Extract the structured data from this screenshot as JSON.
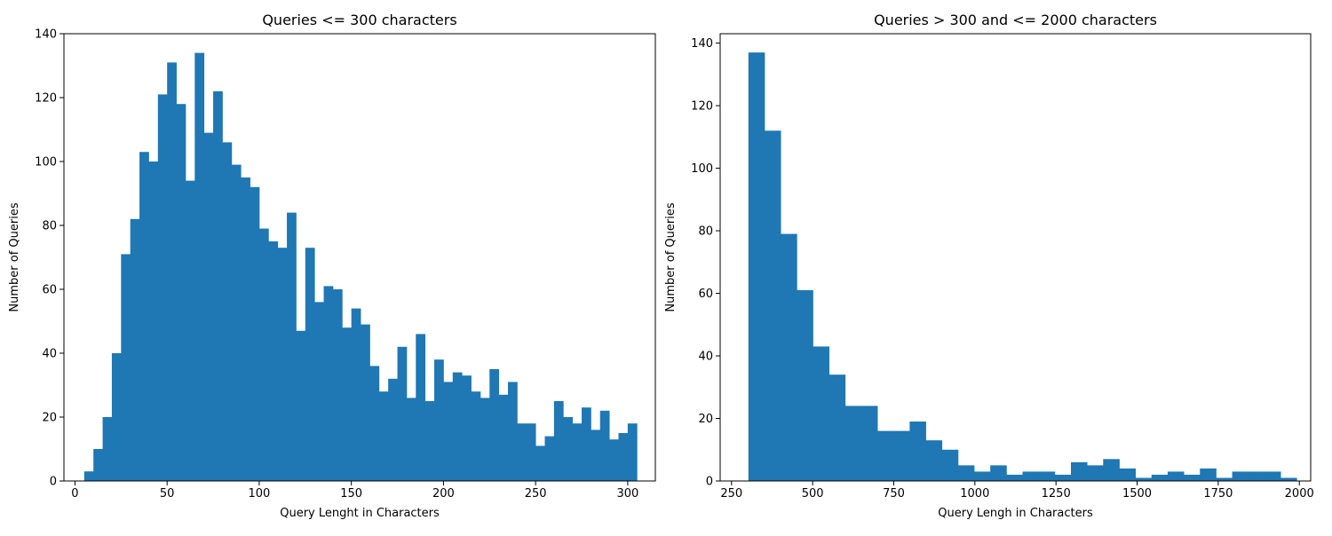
{
  "colors": {
    "bar": "#1f77b4",
    "axis": "#000000",
    "background": "#ffffff"
  },
  "chart_data": [
    {
      "type": "bar",
      "title": "Queries <= 300 characters",
      "xlabel": "Query Lenght in Characters",
      "ylabel": "Number of Queries",
      "xlim": [
        -6,
        315
      ],
      "ylim": [
        0,
        140
      ],
      "xticks": [
        0,
        50,
        100,
        150,
        200,
        250,
        300
      ],
      "yticks": [
        0,
        20,
        40,
        60,
        80,
        100,
        120,
        140
      ],
      "grid": false,
      "bin_start": 5,
      "bin_width": 5,
      "values": [
        3,
        10,
        20,
        40,
        71,
        82,
        103,
        100,
        121,
        131,
        118,
        94,
        134,
        109,
        122,
        106,
        99,
        95,
        92,
        79,
        75,
        73,
        84,
        47,
        73,
        56,
        61,
        60,
        48,
        54,
        49,
        36,
        28,
        32,
        42,
        26,
        46,
        25,
        38,
        31,
        34,
        33,
        28,
        26,
        35,
        27,
        31,
        18,
        18,
        11,
        14,
        25,
        20,
        18,
        23,
        16,
        22,
        13,
        15,
        18
      ]
    },
    {
      "type": "bar",
      "title": "Queries > 300 and <= 2000 characters",
      "xlabel": "Query Lengh in Characters",
      "ylabel": "Number of Queries",
      "xlim": [
        215,
        2035
      ],
      "ylim": [
        0,
        143
      ],
      "xticks": [
        250,
        500,
        750,
        1000,
        1250,
        1500,
        1750,
        2000
      ],
      "yticks": [
        0,
        20,
        40,
        60,
        80,
        100,
        120,
        140
      ],
      "grid": false,
      "bin_start": 302,
      "bin_width": 49.7,
      "values": [
        137,
        112,
        79,
        61,
        43,
        34,
        24,
        24,
        16,
        16,
        19,
        13,
        10,
        5,
        3,
        5,
        2,
        3,
        3,
        2,
        6,
        5,
        7,
        4,
        1,
        2,
        3,
        2,
        4,
        1,
        3,
        3,
        3,
        1
      ]
    }
  ]
}
